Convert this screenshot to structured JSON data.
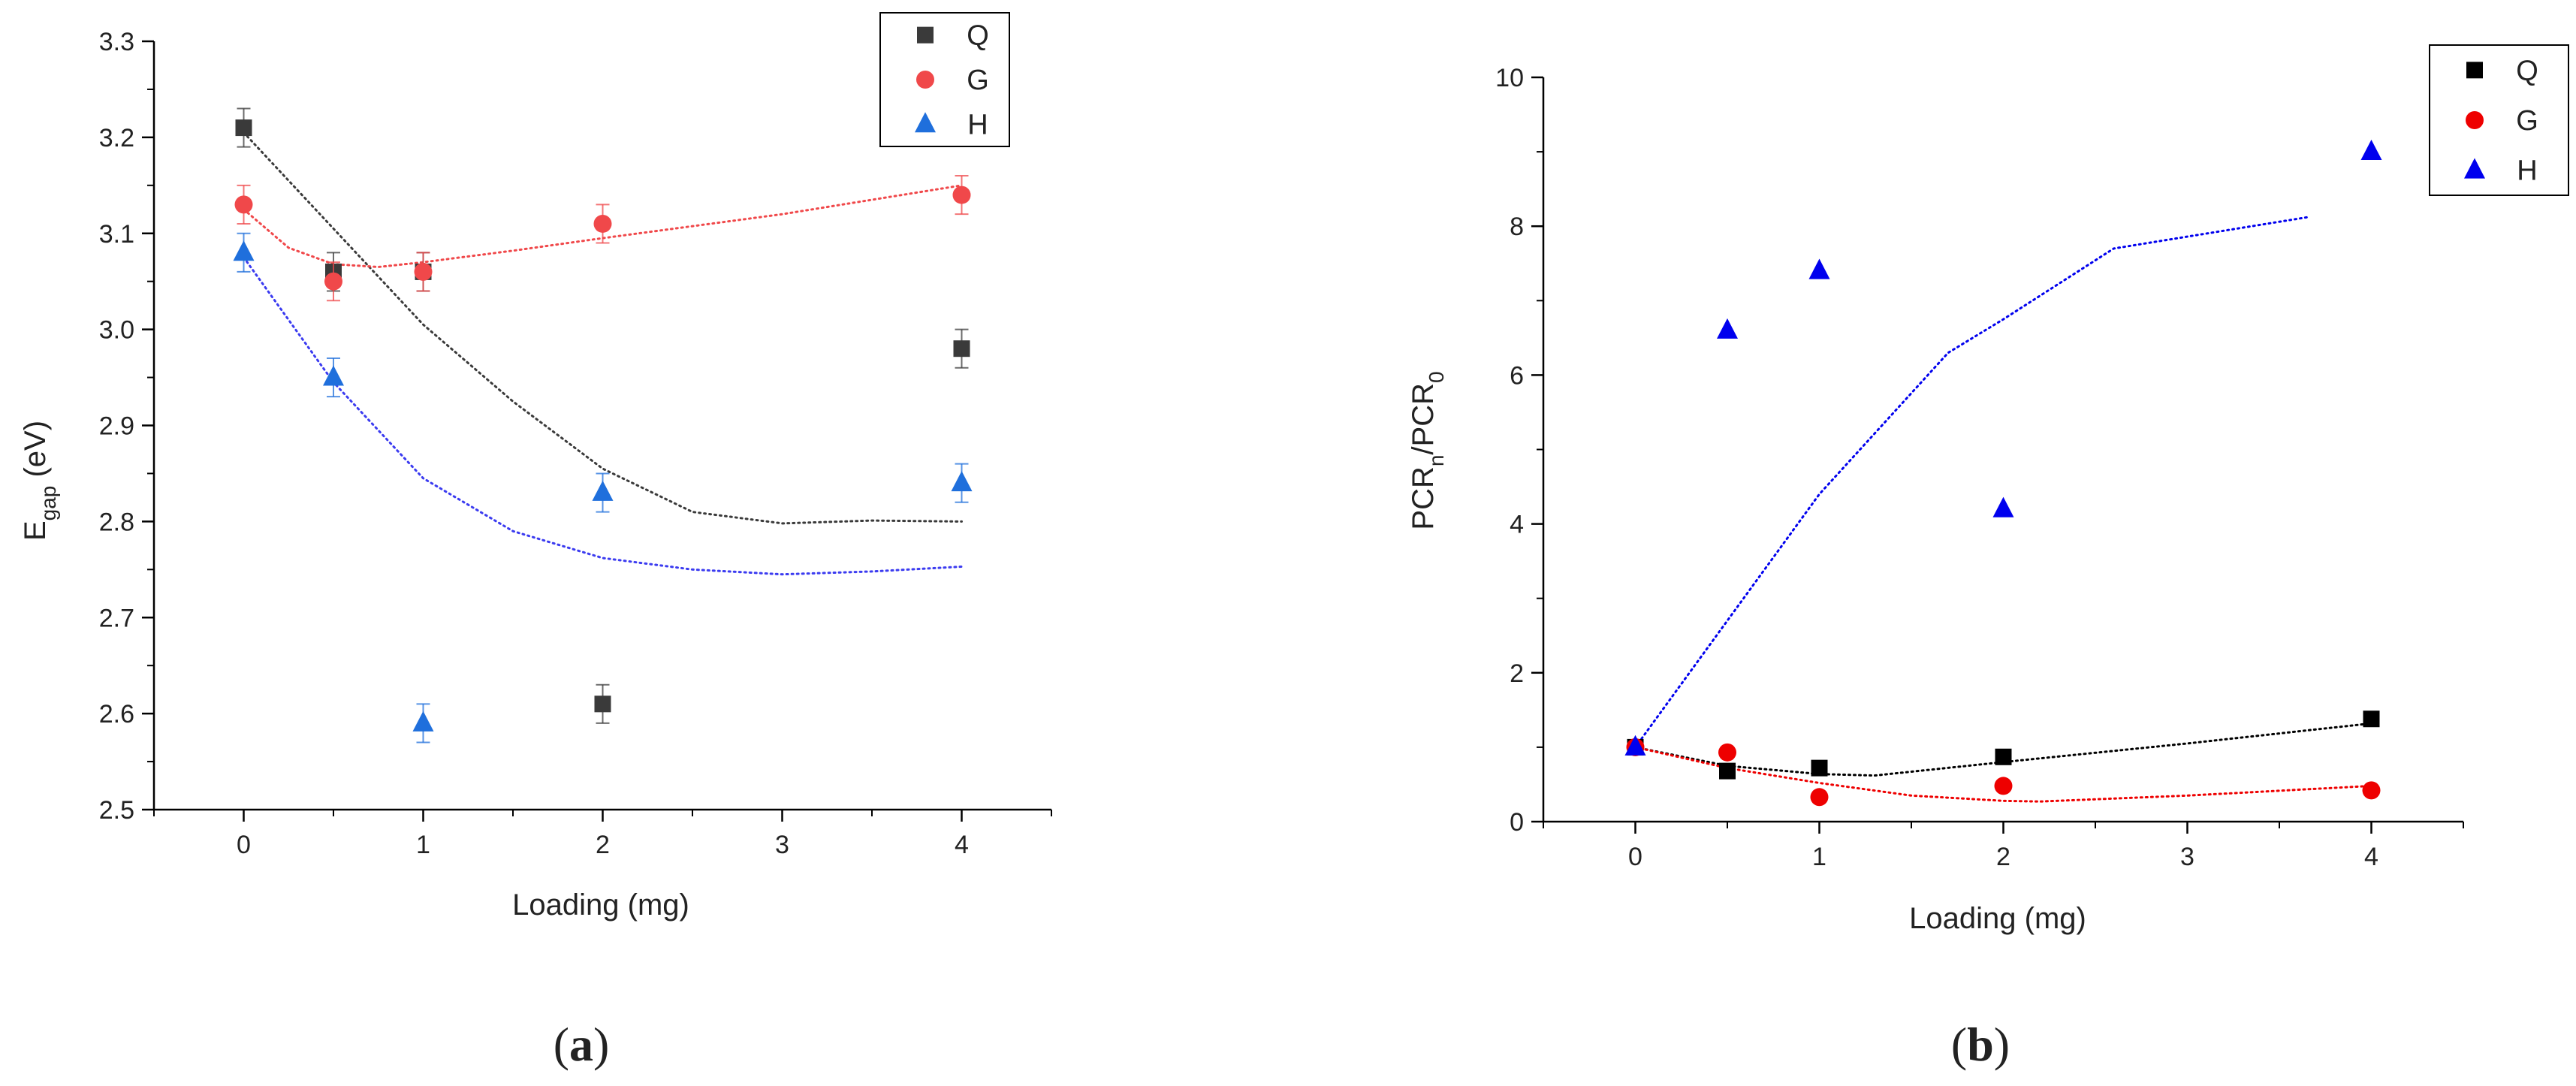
{
  "chart_data": [
    {
      "id": "a",
      "type": "scatter",
      "panel_label": "a",
      "xlabel": "Loading (mg)",
      "ylabel_main": "E",
      "ylabel_sub": "gap",
      "ylabel_tail": " (eV)",
      "xlim": [
        -0.5,
        4.5
      ],
      "ylim": [
        2.5,
        3.3
      ],
      "xticks": [
        0,
        1,
        2,
        3,
        4
      ],
      "yticks": [
        2.5,
        2.6,
        2.7,
        2.8,
        2.9,
        3.0,
        3.1,
        3.2,
        3.3
      ],
      "legend_position": "top-right",
      "series": [
        {
          "name": "Q",
          "marker": "square",
          "color": "#3a3a3a",
          "x": [
            0,
            0.5,
            1,
            2,
            4
          ],
          "y": [
            3.21,
            3.06,
            3.06,
            2.61,
            2.98
          ],
          "err": [
            0.02,
            0.02,
            0.02,
            0.02,
            0.02
          ],
          "fit": {
            "color": "#3a3a3a",
            "x": [
              0,
              0.5,
              1,
              1.5,
              2,
              2.5,
              3,
              3.5,
              4
            ],
            "y": [
              3.205,
              3.105,
              3.005,
              2.925,
              2.855,
              2.81,
              2.798,
              2.801,
              2.8
            ]
          }
        },
        {
          "name": "G",
          "marker": "circle",
          "color": "#f0484a",
          "x": [
            0,
            0.5,
            1,
            2,
            4
          ],
          "y": [
            3.13,
            3.05,
            3.06,
            3.11,
            3.14
          ],
          "err": [
            0.02,
            0.02,
            0.02,
            0.02,
            0.02
          ],
          "fit": {
            "color": "#f0484a",
            "x": [
              0,
              0.25,
              0.5,
              0.75,
              1,
              1.5,
              2,
              3,
              4
            ],
            "y": [
              3.125,
              3.085,
              3.068,
              3.065,
              3.07,
              3.082,
              3.095,
              3.12,
              3.15
            ]
          }
        },
        {
          "name": "H",
          "marker": "triangle",
          "color": "#1f6fdc",
          "x": [
            0,
            0.5,
            1,
            2,
            4
          ],
          "y": [
            3.08,
            2.95,
            2.59,
            2.83,
            2.84
          ],
          "err": [
            0.02,
            0.02,
            0.02,
            0.02,
            0.02
          ],
          "fit": {
            "color": "#3b3bf0",
            "x": [
              0,
              0.5,
              1,
              1.5,
              2,
              2.5,
              3,
              3.5,
              4
            ],
            "y": [
              3.075,
              2.945,
              2.845,
              2.79,
              2.762,
              2.75,
              2.745,
              2.748,
              2.753
            ]
          }
        }
      ]
    },
    {
      "id": "b",
      "type": "scatter",
      "panel_label": "b",
      "xlabel": "Loading (mg)",
      "ylabel_main": "PCR",
      "ylabel_sub": "n",
      "ylabel_mid": "/PCR",
      "ylabel_sub2": "0",
      "xlim": [
        -0.5,
        4.5
      ],
      "ylim": [
        0,
        10
      ],
      "xticks": [
        0,
        1,
        2,
        3,
        4
      ],
      "yticks": [
        0,
        2,
        4,
        6,
        8,
        10
      ],
      "legend_position": "top-right",
      "series": [
        {
          "name": "Q",
          "marker": "square",
          "color": "#000000",
          "x": [
            0,
            0.5,
            1,
            2,
            4
          ],
          "y": [
            1.0,
            0.68,
            0.72,
            0.87,
            1.38
          ],
          "fit": {
            "color": "#000000",
            "x": [
              0,
              0.5,
              1,
              1.3,
              2,
              3,
              4
            ],
            "y": [
              1.0,
              0.75,
              0.64,
              0.62,
              0.8,
              1.05,
              1.32
            ]
          }
        },
        {
          "name": "G",
          "marker": "circle",
          "color": "#ee0000",
          "x": [
            0,
            0.5,
            1,
            2,
            4
          ],
          "y": [
            1.0,
            0.93,
            0.33,
            0.48,
            0.42
          ],
          "fit": {
            "color": "#ee0000",
            "x": [
              0,
              0.5,
              1,
              1.5,
              2,
              2.2,
              3,
              4
            ],
            "y": [
              1.0,
              0.72,
              0.52,
              0.35,
              0.28,
              0.27,
              0.35,
              0.48
            ]
          }
        },
        {
          "name": "H",
          "marker": "triangle",
          "color": "#0000ee",
          "x": [
            0,
            0.5,
            1,
            2,
            4
          ],
          "y": [
            1.0,
            6.6,
            7.4,
            4.2,
            9.0
          ],
          "fit": {
            "color": "#0000ee",
            "x": [
              0,
              0.5,
              1,
              1.7,
              2,
              2.6,
              3.65
            ],
            "y": [
              1.0,
              2.7,
              4.4,
              6.3,
              6.75,
              7.7,
              8.12
            ]
          }
        }
      ]
    }
  ]
}
